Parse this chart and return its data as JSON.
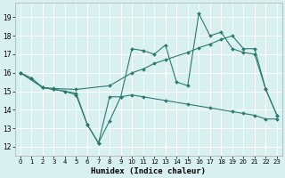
{
  "xlabel": "Humidex (Indice chaleur)",
  "background_color": "#d8f0f0",
  "grid_color": "#ffffff",
  "line_color": "#2a7a6e",
  "xlim": [
    -0.5,
    23.5
  ],
  "ylim": [
    11.5,
    19.8
  ],
  "xticks": [
    0,
    1,
    2,
    3,
    4,
    5,
    6,
    7,
    8,
    9,
    10,
    11,
    12,
    13,
    14,
    15,
    16,
    17,
    18,
    19,
    20,
    21,
    22,
    23
  ],
  "yticks": [
    12,
    13,
    14,
    15,
    16,
    17,
    18,
    19
  ],
  "curve1_x": [
    0,
    1,
    2,
    3,
    4,
    5,
    6,
    7,
    8,
    9,
    10,
    11,
    12,
    13,
    14,
    15,
    16,
    17,
    18,
    19,
    20,
    21,
    22,
    23
  ],
  "curve1_y": [
    16.0,
    15.7,
    15.2,
    15.1,
    15.0,
    14.9,
    13.2,
    12.2,
    13.4,
    14.7,
    17.3,
    17.2,
    17.0,
    17.5,
    15.5,
    15.3,
    19.2,
    18.0,
    18.2,
    17.3,
    17.1,
    17.0,
    15.1,
    13.7
  ],
  "curve2_x": [
    0,
    1,
    2,
    3,
    5,
    8,
    10,
    11,
    12,
    13,
    15,
    16,
    17,
    18,
    19,
    20,
    21,
    22,
    23
  ],
  "curve2_y": [
    16.0,
    15.7,
    15.2,
    15.15,
    15.1,
    15.3,
    16.0,
    16.2,
    16.5,
    16.7,
    17.1,
    17.35,
    17.55,
    17.8,
    18.0,
    17.3,
    17.3,
    15.1,
    13.7
  ],
  "curve3_x": [
    0,
    2,
    3,
    4,
    5,
    6,
    7,
    8,
    9,
    10,
    11,
    13,
    15,
    17,
    19,
    20,
    21,
    22,
    23
  ],
  "curve3_y": [
    16.0,
    15.2,
    15.1,
    15.0,
    14.8,
    13.2,
    12.2,
    14.7,
    14.7,
    14.8,
    14.7,
    14.5,
    14.3,
    14.1,
    13.9,
    13.8,
    13.7,
    13.5,
    13.5
  ]
}
